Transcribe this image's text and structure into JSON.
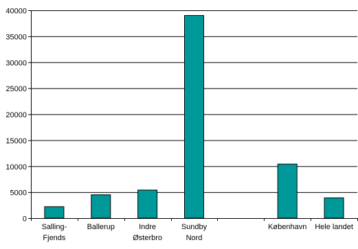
{
  "chart_data": {
    "type": "bar",
    "title": "",
    "xlabel": "",
    "ylabel": "",
    "ylim": [
      0,
      40000
    ],
    "yticks": [
      0,
      5000,
      10000,
      15000,
      20000,
      25000,
      30000,
      35000,
      40000
    ],
    "grid": true,
    "legend": "none",
    "categories": [
      [
        "Salling-",
        "Fjends"
      ],
      [
        "Ballerup"
      ],
      [
        "Indre",
        "Østerbro"
      ],
      [
        "Sundby",
        "Nord"
      ],
      [
        ""
      ],
      [
        "København"
      ],
      [
        "Hele landet"
      ]
    ],
    "values": [
      2200,
      4500,
      5400,
      39000,
      0,
      10400,
      3900
    ],
    "colors": {
      "bar": "#009999",
      "bar_outline": "#000000",
      "axis": "#000000",
      "grid": "#000000"
    }
  }
}
